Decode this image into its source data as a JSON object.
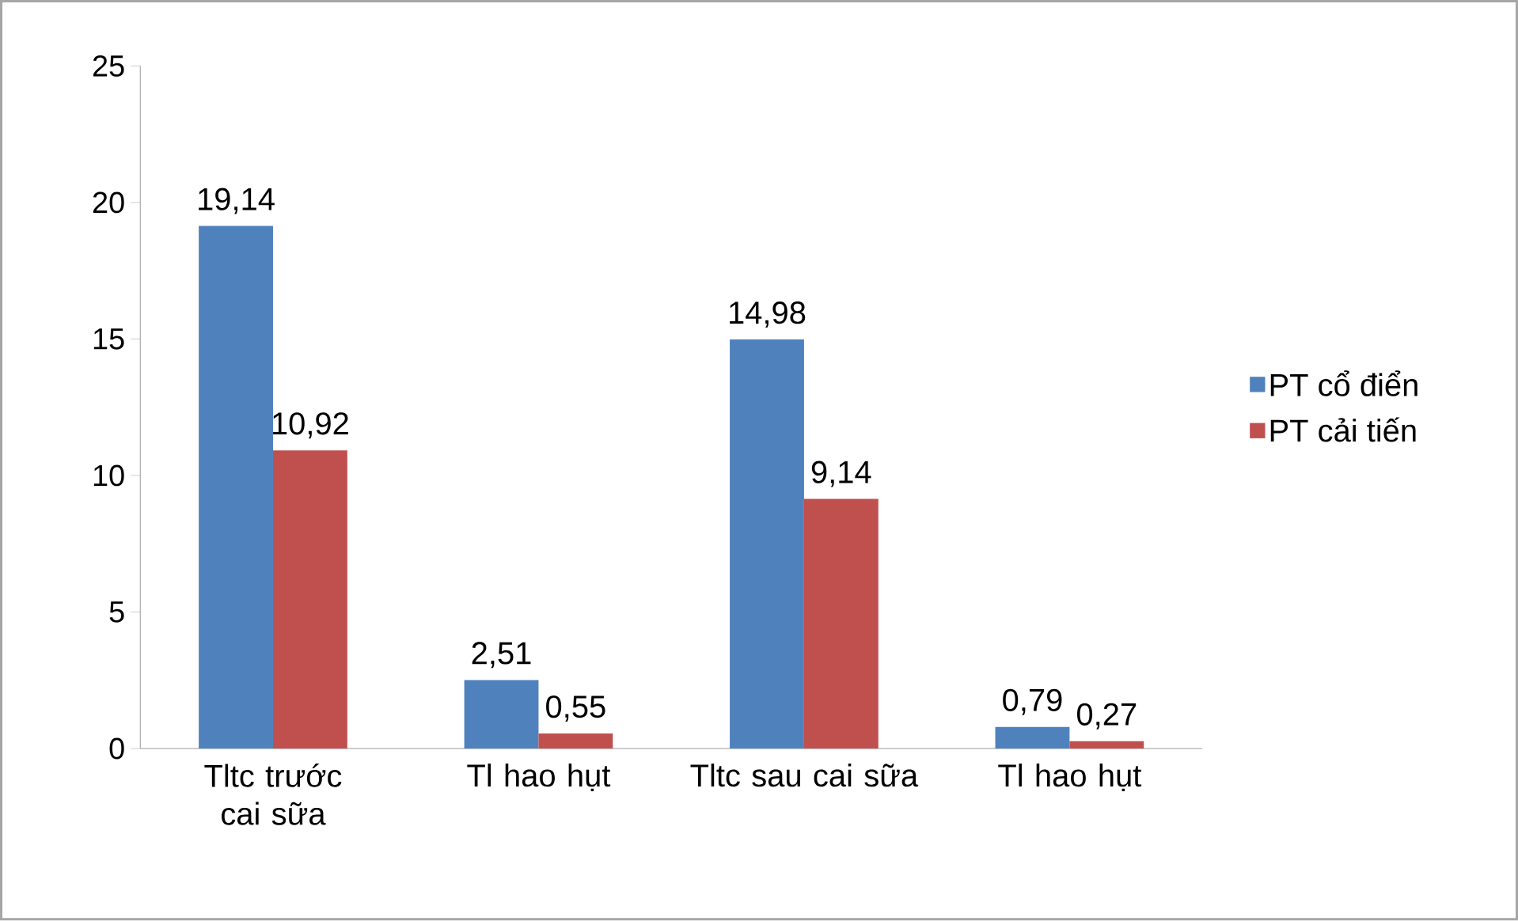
{
  "chart_data": {
    "type": "bar",
    "categories": [
      "Tltc trước cai sữa",
      "Tl hao hụt",
      "Tltc sau cai sữa",
      "Tl hao hụt"
    ],
    "series": [
      {
        "name": "PT cổ điển",
        "color": "#4f81bd",
        "values": [
          19.14,
          2.51,
          14.98,
          0.79
        ],
        "value_labels": [
          "19,14",
          "2,51",
          "14,98",
          "0,79"
        ]
      },
      {
        "name": "PT cải tiến",
        "color": "#c0504d",
        "values": [
          10.92,
          0.55,
          9.14,
          0.27
        ],
        "value_labels": [
          "10,92",
          "0,55",
          "9,14",
          "0,27"
        ]
      }
    ],
    "ylim": [
      0,
      25
    ],
    "yticks": [
      0,
      5,
      10,
      15,
      20,
      25
    ],
    "grid": false,
    "legend": "right"
  }
}
